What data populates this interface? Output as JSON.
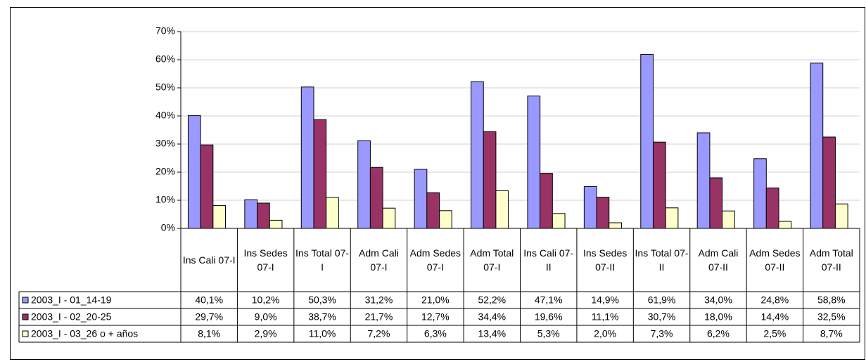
{
  "chart_data": {
    "type": "bar",
    "categories": [
      "Ins Cali 07-I",
      "Ins Sedes 07-I",
      "Ins Total 07-I",
      "Adm Cali 07-I",
      "Adm Sedes 07-I",
      "Adm Total 07-I",
      "Ins Cali 07-II",
      "Ins Sedes 07-II",
      "Ins Total 07-II",
      "Adm Cali 07-II",
      "Adm Sedes 07-II",
      "Adm Total 07-II"
    ],
    "series": [
      {
        "name": "2003_I - 01_14-19",
        "color": "#9999ff",
        "values": [
          40.1,
          10.2,
          50.3,
          31.2,
          21.0,
          52.2,
          47.1,
          14.9,
          61.9,
          34.0,
          24.8,
          58.8
        ],
        "value_labels": [
          "40,1%",
          "10,2%",
          "50,3%",
          "31,2%",
          "21,0%",
          "52,2%",
          "47,1%",
          "14,9%",
          "61,9%",
          "34,0%",
          "24,8%",
          "58,8%"
        ]
      },
      {
        "name": "2003_I - 02_20-25",
        "color": "#993366",
        "values": [
          29.7,
          9.0,
          38.7,
          21.7,
          12.7,
          34.4,
          19.6,
          11.1,
          30.7,
          18.0,
          14.4,
          32.5
        ],
        "value_labels": [
          "29,7%",
          "9,0%",
          "38,7%",
          "21,7%",
          "12,7%",
          "34,4%",
          "19,6%",
          "11,1%",
          "30,7%",
          "18,0%",
          "14,4%",
          "32,5%"
        ]
      },
      {
        "name": "2003_I - 03_26 o + años",
        "color": "#ffffcc",
        "values": [
          8.1,
          2.9,
          11.0,
          7.2,
          6.3,
          13.4,
          5.3,
          2.0,
          7.3,
          6.2,
          2.5,
          8.7
        ],
        "value_labels": [
          "8,1%",
          "2,9%",
          "11,0%",
          "7,2%",
          "6,3%",
          "13,4%",
          "5,3%",
          "2,0%",
          "7,3%",
          "6,2%",
          "2,5%",
          "8,7%"
        ]
      }
    ],
    "ylim": [
      0,
      70
    ],
    "yticks": [
      {
        "value": 0,
        "label": "0%"
      },
      {
        "value": 10,
        "label": "10%"
      },
      {
        "value": 20,
        "label": "20%"
      },
      {
        "value": 30,
        "label": "30%"
      },
      {
        "value": 40,
        "label": "40%"
      },
      {
        "value": 50,
        "label": "50%"
      },
      {
        "value": 60,
        "label": "60%"
      },
      {
        "value": 70,
        "label": "70%"
      }
    ],
    "grid": true
  }
}
